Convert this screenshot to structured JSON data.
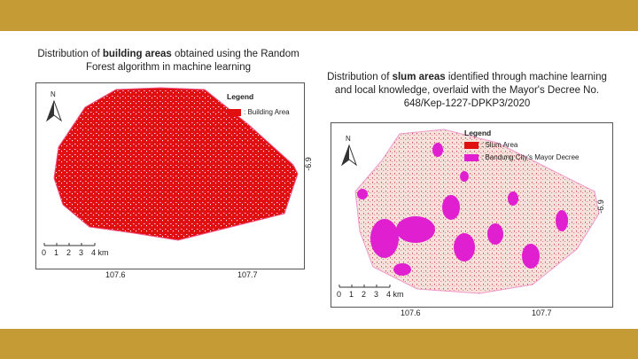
{
  "left_map": {
    "title": {
      "pre": "Distribution of ",
      "bold": "building areas",
      "post": " obtained using the Random Forest algorithm in machine learning"
    },
    "north": "N",
    "legend_title": "Legend",
    "legend_items": [
      ": Building Area"
    ],
    "scale_labels": [
      "0",
      "1",
      "2",
      "3",
      "4 km"
    ],
    "x_labels": [
      "107.6",
      "107.7"
    ],
    "y_label": "-6.9"
  },
  "right_map": {
    "title": {
      "pre": "Distribution of ",
      "bold": "slum areas",
      "post": " identified through machine learning and local knowledge, overlaid with the Mayor's Decree No. 648/Kep-1227-DPKP3/2020"
    },
    "north": "N",
    "legend_title": "Legend",
    "legend_items": [
      ": Slum Area",
      ": Bandung City's Mayor Decree"
    ],
    "scale_labels": [
      "0",
      "1",
      "2",
      "3",
      "4 km"
    ],
    "x_labels": [
      "107.6",
      "107.7"
    ],
    "y_label": "-6.9"
  }
}
